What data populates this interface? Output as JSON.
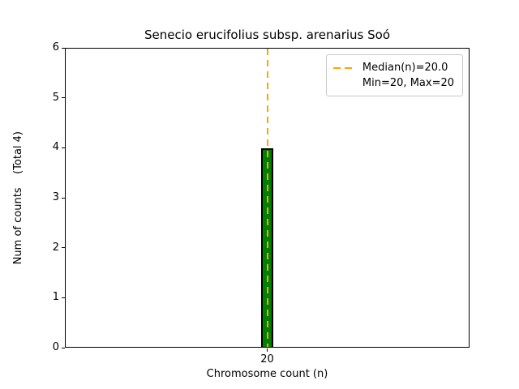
{
  "chart_data": {
    "type": "bar",
    "title": "Senecio erucifolius subsp. arenarius Soó",
    "xlabel": "Chromosome count (n)",
    "ylabel": "Num of counts    (Total 4)",
    "categories": [
      20
    ],
    "values": [
      4
    ],
    "total_counts": 4,
    "xticks": [
      "20"
    ],
    "yticks": [
      0,
      1,
      2,
      3,
      4,
      5,
      6
    ],
    "ylim": [
      0,
      6
    ],
    "grid": false,
    "bar": {
      "fill_color": "#008000",
      "edge_color": "#000000"
    },
    "median_line": {
      "x": 20,
      "value": 20.0,
      "color": "#FFA500",
      "style": "dashed"
    },
    "legend": {
      "position": "upper right",
      "entries": [
        {
          "label": "Median(n)=20.0",
          "swatch": "orange-dashed-line",
          "color": "#FFA500"
        },
        {
          "label": "Min=20, Max=20",
          "swatch": "none"
        }
      ]
    }
  }
}
